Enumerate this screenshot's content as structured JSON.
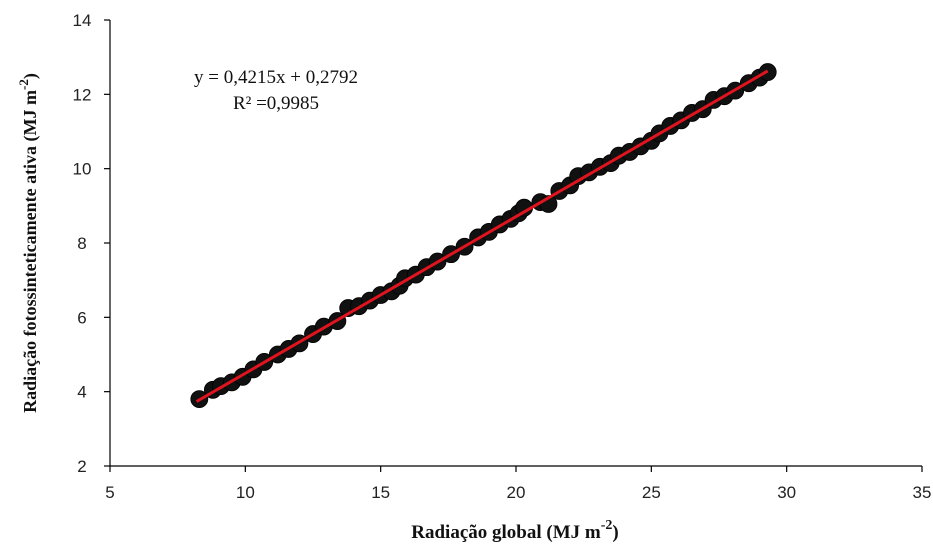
{
  "chart_data": {
    "type": "scatter",
    "xlabel": "Radiação global (MJ m",
    "xlabel_sup": "-2",
    "xlabel_end": ")",
    "ylabel": "Radiação fotossinteticamente ativa (MJ m",
    "ylabel_sup": "-2",
    "ylabel_end": ")",
    "xlim": [
      5,
      35
    ],
    "ylim": [
      2,
      14
    ],
    "x_ticks": [
      "5",
      "10",
      "15",
      "20",
      "25",
      "30",
      "35"
    ],
    "y_ticks": [
      "2",
      "4",
      "6",
      "8",
      "10",
      "12",
      "14"
    ],
    "grid": false,
    "equation": "y = 0,4215x + 0,2792",
    "r_squared": "R² =0,9985",
    "trendline": {
      "slope": 0.4215,
      "intercept": 0.2792,
      "x_range": [
        8.2,
        29.3
      ],
      "color": "#e0141e"
    },
    "marker_color": "#111111",
    "points": [
      [
        8.3,
        3.8
      ],
      [
        8.8,
        4.05
      ],
      [
        9.1,
        4.15
      ],
      [
        9.5,
        4.25
      ],
      [
        9.9,
        4.4
      ],
      [
        10.3,
        4.6
      ],
      [
        10.7,
        4.8
      ],
      [
        11.2,
        5.0
      ],
      [
        11.6,
        5.15
      ],
      [
        12.0,
        5.3
      ],
      [
        12.5,
        5.55
      ],
      [
        12.9,
        5.75
      ],
      [
        13.4,
        5.9
      ],
      [
        13.8,
        6.25
      ],
      [
        14.2,
        6.3
      ],
      [
        14.6,
        6.45
      ],
      [
        15.0,
        6.6
      ],
      [
        15.4,
        6.7
      ],
      [
        15.7,
        6.85
      ],
      [
        15.9,
        7.05
      ],
      [
        16.3,
        7.15
      ],
      [
        16.7,
        7.35
      ],
      [
        17.1,
        7.5
      ],
      [
        17.6,
        7.7
      ],
      [
        18.1,
        7.9
      ],
      [
        18.6,
        8.15
      ],
      [
        19.0,
        8.3
      ],
      [
        19.4,
        8.5
      ],
      [
        19.8,
        8.65
      ],
      [
        20.1,
        8.8
      ],
      [
        20.3,
        8.95
      ],
      [
        20.9,
        9.1
      ],
      [
        21.2,
        9.05
      ],
      [
        21.6,
        9.4
      ],
      [
        22.0,
        9.55
      ],
      [
        22.3,
        9.8
      ],
      [
        22.7,
        9.9
      ],
      [
        23.1,
        10.05
      ],
      [
        23.5,
        10.15
      ],
      [
        23.8,
        10.35
      ],
      [
        24.2,
        10.45
      ],
      [
        24.6,
        10.6
      ],
      [
        25.0,
        10.75
      ],
      [
        25.3,
        10.95
      ],
      [
        25.7,
        11.15
      ],
      [
        26.1,
        11.3
      ],
      [
        26.5,
        11.5
      ],
      [
        26.9,
        11.6
      ],
      [
        27.3,
        11.85
      ],
      [
        27.7,
        11.95
      ],
      [
        28.1,
        12.1
      ],
      [
        28.6,
        12.3
      ],
      [
        29.0,
        12.45
      ],
      [
        29.3,
        12.6
      ]
    ]
  }
}
